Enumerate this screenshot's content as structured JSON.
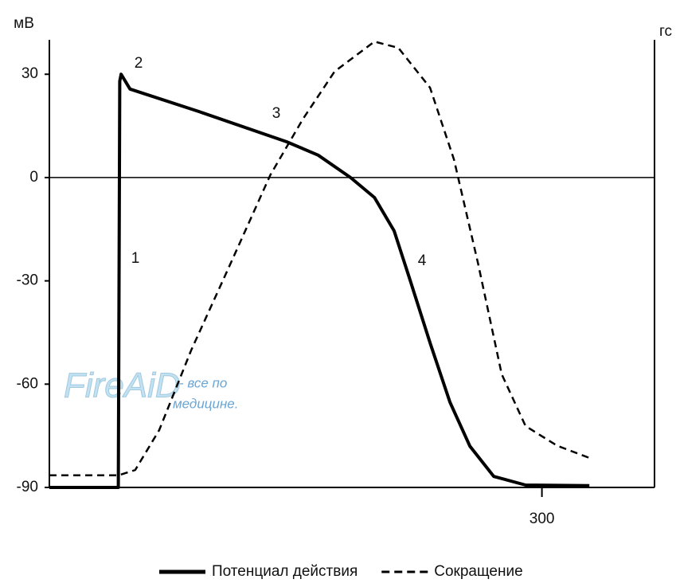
{
  "chart_data": {
    "type": "line",
    "y_label": "мВ",
    "y2_label": "гс",
    "xlim": [
      -50,
      380
    ],
    "xticks": [
      300
    ],
    "ylim": [
      -90,
      40
    ],
    "yticks": [
      -90,
      -60,
      -30,
      0,
      30
    ],
    "y2lim": [
      0,
      100
    ],
    "series": [
      {
        "name": "Потенциал действия",
        "color": "#000000",
        "style": "solid",
        "x": [
          -50,
          -1,
          0,
          1,
          7.3,
          56,
          118.6,
          141,
          164,
          181,
          195,
          206,
          220.5,
          234.7,
          248.8,
          265.8,
          288.4,
          333.7
        ],
        "values": [
          -90,
          -90,
          28,
          30,
          25.7,
          19.2,
          10.4,
          6.5,
          0,
          -5.8,
          -15.5,
          -29.4,
          -48,
          -65.3,
          -78,
          -86.8,
          -89.3,
          -89.5
        ]
      },
      {
        "name": "Сокращение",
        "color": "#000000",
        "style": "dashed",
        "axis": "y2",
        "x": [
          -50,
          -1,
          11,
          28,
          50.7,
          79,
          107,
          130,
          152.6,
          181,
          198,
          220.5,
          237.5,
          254.5,
          271.4,
          288.4,
          311,
          333.7
        ],
        "values": [
          2.7,
          2.7,
          3.9,
          12.8,
          30.6,
          50.2,
          69.8,
          82.2,
          92.9,
          99.6,
          98.2,
          89.3,
          73.3,
          50.2,
          25.3,
          13.7,
          9.3,
          6.6
        ]
      }
    ],
    "annotations": [
      "1",
      "2",
      "3",
      "4"
    ],
    "watermark": {
      "logo": "FireAiD",
      "text": [
        "- все по",
        "медицине."
      ]
    }
  }
}
